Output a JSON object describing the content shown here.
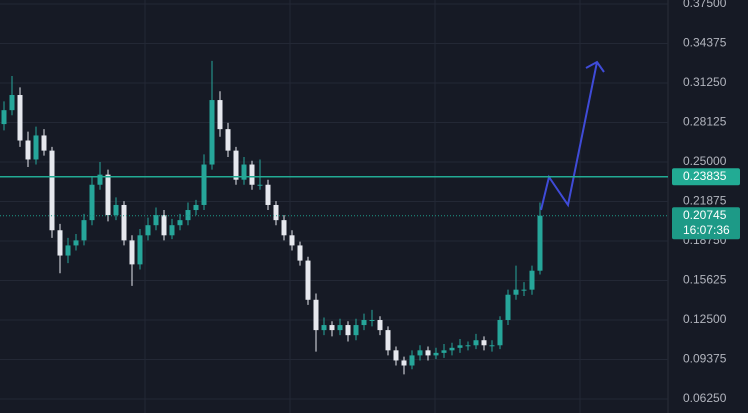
{
  "chart_data": {
    "type": "candlestick",
    "open": [
      0.28,
      0.291,
      0.303,
      0.267,
      0.252,
      0.271,
      0.259,
      0.196,
      0.176,
      0.184,
      0.188,
      0.204,
      0.232,
      0.24,
      0.208,
      0.216,
      0.188,
      0.169,
      0.192,
      0.2,
      0.208,
      0.192,
      0.2,
      0.204,
      0.212,
      0.216,
      0.248,
      0.299,
      0.276,
      0.259,
      0.236,
      0.248,
      0.232,
      0.232,
      0.216,
      0.204,
      0.192,
      0.184,
      0.172,
      0.141,
      0.117,
      0.121,
      0.117,
      0.121,
      0.113,
      0.121,
      0.125,
      0.125,
      0.117,
      0.101,
      0.093,
      0.089,
      0.097,
      0.101,
      0.097,
      0.099,
      0.101,
      0.103,
      0.105,
      0.105,
      0.109,
      0.105,
      0.105,
      0.125,
      0.145,
      0.149,
      0.149,
      0.164
    ],
    "high": [
      0.298,
      0.318,
      0.309,
      0.274,
      0.278,
      0.276,
      0.262,
      0.201,
      0.19,
      0.193,
      0.209,
      0.238,
      0.25,
      0.244,
      0.222,
      0.219,
      0.192,
      0.197,
      0.206,
      0.214,
      0.212,
      0.205,
      0.209,
      0.218,
      0.22,
      0.256,
      0.33,
      0.306,
      0.281,
      0.262,
      0.254,
      0.251,
      0.252,
      0.236,
      0.219,
      0.208,
      0.196,
      0.187,
      0.175,
      0.146,
      0.127,
      0.124,
      0.126,
      0.124,
      0.126,
      0.13,
      0.133,
      0.128,
      0.12,
      0.104,
      0.096,
      0.101,
      0.105,
      0.104,
      0.103,
      0.106,
      0.107,
      0.11,
      0.108,
      0.114,
      0.112,
      0.109,
      0.128,
      0.149,
      0.168,
      0.155,
      0.168,
      0.218
    ],
    "low": [
      0.275,
      0.287,
      0.262,
      0.246,
      0.248,
      0.255,
      0.19,
      0.162,
      0.17,
      0.18,
      0.184,
      0.2,
      0.228,
      0.203,
      0.204,
      0.184,
      0.152,
      0.165,
      0.188,
      0.196,
      0.188,
      0.189,
      0.196,
      0.2,
      0.208,
      0.212,
      0.244,
      0.27,
      0.254,
      0.232,
      0.232,
      0.228,
      0.228,
      0.212,
      0.2,
      0.188,
      0.18,
      0.168,
      0.137,
      0.1,
      0.113,
      0.112,
      0.113,
      0.108,
      0.109,
      0.117,
      0.12,
      0.113,
      0.097,
      0.089,
      0.082,
      0.086,
      0.093,
      0.093,
      0.094,
      0.095,
      0.097,
      0.099,
      0.101,
      0.102,
      0.101,
      0.1,
      0.102,
      0.121,
      0.141,
      0.144,
      0.145,
      0.161
    ],
    "close": [
      0.291,
      0.303,
      0.267,
      0.252,
      0.271,
      0.259,
      0.196,
      0.176,
      0.184,
      0.188,
      0.204,
      0.232,
      0.24,
      0.208,
      0.216,
      0.188,
      0.169,
      0.192,
      0.2,
      0.208,
      0.192,
      0.2,
      0.204,
      0.212,
      0.216,
      0.248,
      0.299,
      0.276,
      0.259,
      0.236,
      0.248,
      0.232,
      0.232,
      0.216,
      0.204,
      0.192,
      0.184,
      0.172,
      0.141,
      0.117,
      0.121,
      0.117,
      0.121,
      0.113,
      0.121,
      0.125,
      0.125,
      0.117,
      0.101,
      0.093,
      0.089,
      0.097,
      0.101,
      0.097,
      0.099,
      0.101,
      0.103,
      0.105,
      0.105,
      0.109,
      0.105,
      0.105,
      0.125,
      0.145,
      0.149,
      0.149,
      0.164,
      0.2075
    ],
    "up_color": "#26a69a",
    "down_color": "#e6e8ee",
    "ylim": [
      0.0625,
      0.375
    ],
    "yticks": [
      {
        "value": 0.0625,
        "label": "0.06250"
      },
      {
        "value": 0.09375,
        "label": "0.09375"
      },
      {
        "value": 0.125,
        "label": "0.12500"
      },
      {
        "value": 0.15625,
        "label": "0.15625"
      },
      {
        "value": 0.1875,
        "label": "0.18750"
      },
      {
        "value": 0.21875,
        "label": "0.21875"
      },
      {
        "value": 0.25,
        "label": "0.25000"
      },
      {
        "value": 0.28125,
        "label": "0.28125"
      },
      {
        "value": 0.3125,
        "label": "0.31250"
      },
      {
        "value": 0.34375,
        "label": "0.34375"
      },
      {
        "value": 0.375,
        "label": "0.37500"
      }
    ],
    "grid": true,
    "price_lines": [
      {
        "value": 0.23835,
        "color": "#22ab94",
        "style": "solid"
      },
      {
        "value": 0.20745,
        "countdown": "16:07:36",
        "color": "#1d9a87",
        "style": "dotted"
      }
    ]
  }
}
